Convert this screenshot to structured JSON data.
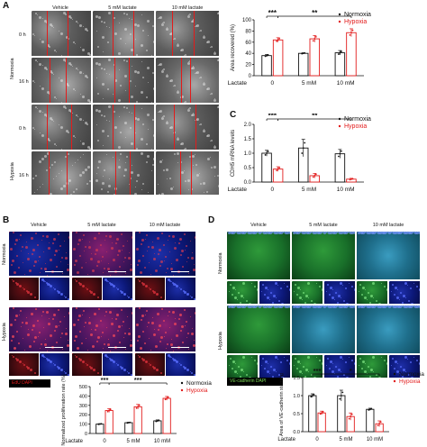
{
  "panels": {
    "A": {
      "label": "A",
      "cols": [
        "Vehicle",
        "5 mM  lactate",
        "10 mM  lactate"
      ],
      "group_normoxia": "Normoxia",
      "group_hypoxia": "Hypoxia",
      "time0": "0 h",
      "time16": "16 h"
    },
    "B": {
      "label": "B",
      "cols": [
        "Vehicle",
        "5 mM  lactate",
        "10 mM  lactate"
      ],
      "rows": [
        "Normoxia",
        "Hypoxia"
      ],
      "stain": "EdU  DAPI"
    },
    "C": {
      "label": "C"
    },
    "D": {
      "label": "D",
      "cols": [
        "Vehicle",
        "5 mM  lactate",
        "10 mM  lactate"
      ],
      "rows": [
        "Normoxia",
        "Hypoxia"
      ],
      "stain": "VE-cadherin  DAPI"
    }
  },
  "legend": {
    "normoxia": "Normoxia",
    "hypoxia": "Hypoxia"
  },
  "colors": {
    "normoxia": "#111111",
    "hypoxia": "#e21b1b"
  },
  "chart_data": [
    {
      "id": "A",
      "type": "bar",
      "ylabel": "Area recovered (%)",
      "xlabel": "Lactate",
      "categories": [
        "0",
        "5 mM",
        "10 mM"
      ],
      "ylim": [
        0,
        100
      ],
      "yticks": [
        "0",
        "20",
        "40",
        "60",
        "80",
        "100"
      ],
      "series": [
        {
          "name": "Normoxia",
          "values": [
            36,
            40,
            41
          ],
          "errors": [
            2,
            1,
            4
          ]
        },
        {
          "name": "Hypoxia",
          "values": [
            64,
            66,
            77
          ],
          "errors": [
            4,
            6,
            7
          ]
        }
      ],
      "significance": [
        {
          "from": 0,
          "to": 0,
          "text": "***"
        },
        {
          "from": 0,
          "to": 2,
          "text": "**"
        }
      ]
    },
    {
      "id": "C",
      "type": "bar",
      "ylabel": "CDH5 mRNA levels",
      "xlabel": "Lactate",
      "categories": [
        "0",
        "5 mM",
        "10 mM"
      ],
      "ylim": [
        0,
        2.0
      ],
      "yticks": [
        "0.0",
        "0.5",
        "1.0",
        "1.5",
        "2.0"
      ],
      "series": [
        {
          "name": "Normoxia",
          "values": [
            1.0,
            1.18,
            0.98
          ],
          "errors": [
            0.1,
            0.3,
            0.15
          ]
        },
        {
          "name": "Hypoxia",
          "values": [
            0.45,
            0.22,
            0.1
          ],
          "errors": [
            0.08,
            0.08,
            0.03
          ]
        }
      ],
      "significance": [
        {
          "from": 0,
          "to": 0,
          "text": "***"
        },
        {
          "from": 0,
          "to": 2,
          "text": "**"
        }
      ]
    },
    {
      "id": "B",
      "type": "bar",
      "ylabel": "Normalized proliferation rate (%)",
      "xlabel": "Lactate",
      "categories": [
        "0",
        "5 mM",
        "10 mM"
      ],
      "ylim": [
        0,
        500
      ],
      "yticks": [
        "0",
        "100",
        "200",
        "300",
        "400",
        "500"
      ],
      "series": [
        {
          "name": "Normoxia",
          "values": [
            100,
            115,
            135
          ],
          "errors": [
            5,
            5,
            10
          ]
        },
        {
          "name": "Hypoxia",
          "values": [
            245,
            285,
            375
          ],
          "errors": [
            20,
            25,
            20
          ]
        }
      ],
      "significance": [
        {
          "from": 0,
          "to": 0,
          "text": "***"
        },
        {
          "from": 0,
          "to": 2,
          "text": "***"
        }
      ]
    },
    {
      "id": "D",
      "type": "bar",
      "ylabel": "Area of VE-cadherin staining",
      "xlabel": "Lactate",
      "categories": [
        "0",
        "5 mM",
        "10 mM"
      ],
      "ylim": [
        0,
        1.5
      ],
      "yticks": [
        "0.0",
        "0.5",
        "1.0",
        "1.5"
      ],
      "series": [
        {
          "name": "Normoxia",
          "values": [
            1.0,
            1.0,
            0.62
          ],
          "errors": [
            0.05,
            0.15,
            0.03
          ]
        },
        {
          "name": "Hypoxia",
          "values": [
            0.52,
            0.42,
            0.22
          ],
          "errors": [
            0.05,
            0.1,
            0.08
          ]
        }
      ],
      "significance": [
        {
          "from": 0,
          "to": 0,
          "text": "***"
        },
        {
          "from": 0,
          "to": 2,
          "text": "*"
        }
      ]
    }
  ]
}
